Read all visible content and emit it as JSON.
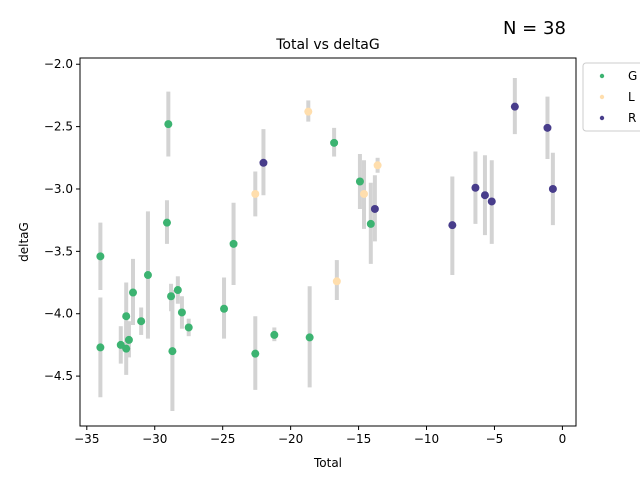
{
  "chart_data": {
    "type": "scatter",
    "title": "Total vs deltaG",
    "xlabel": "Total",
    "ylabel": "deltaG",
    "annotation": "N = 38",
    "xlim": [
      -35.5,
      1.0
    ],
    "ylim": [
      -4.9,
      -1.95
    ],
    "xticks": [
      -35,
      -30,
      -25,
      -20,
      -15,
      -10,
      -5,
      0
    ],
    "yticks": [
      -4.5,
      -4.0,
      -3.5,
      -3.0,
      -2.5,
      -2.0
    ],
    "grid": false,
    "legend_position": "outside-right",
    "error_bar_color": "#d3d3d3",
    "series": [
      {
        "name": "G",
        "color": "#3cb371",
        "points": [
          {
            "x": -34.0,
            "y": -3.54,
            "lo": -3.81,
            "hi": -3.27
          },
          {
            "x": -34.0,
            "y": -4.27,
            "lo": -4.67,
            "hi": -3.87
          },
          {
            "x": -32.5,
            "y": -4.25,
            "lo": -4.4,
            "hi": -4.1
          },
          {
            "x": -32.1,
            "y": -4.28,
            "lo": -4.49,
            "hi": -4.06
          },
          {
            "x": -32.1,
            "y": -4.02,
            "lo": -4.29,
            "hi": -3.75
          },
          {
            "x": -31.9,
            "y": -4.21,
            "lo": -4.35,
            "hi": -4.06
          },
          {
            "x": -31.6,
            "y": -3.83,
            "lo": -4.09,
            "hi": -3.56
          },
          {
            "x": -31.0,
            "y": -4.06,
            "lo": -4.17,
            "hi": -3.95
          },
          {
            "x": -30.5,
            "y": -3.69,
            "lo": -4.2,
            "hi": -3.18
          },
          {
            "x": -29.1,
            "y": -3.27,
            "lo": -3.44,
            "hi": -3.09
          },
          {
            "x": -29.0,
            "y": -2.48,
            "lo": -2.74,
            "hi": -2.22
          },
          {
            "x": -28.8,
            "y": -3.86,
            "lo": -3.98,
            "hi": -3.76
          },
          {
            "x": -28.7,
            "y": -4.3,
            "lo": -4.78,
            "hi": -3.81
          },
          {
            "x": -28.3,
            "y": -3.81,
            "lo": -3.92,
            "hi": -3.7
          },
          {
            "x": -28.0,
            "y": -3.99,
            "lo": -4.12,
            "hi": -3.86
          },
          {
            "x": -27.5,
            "y": -4.11,
            "lo": -4.18,
            "hi": -4.04
          },
          {
            "x": -24.9,
            "y": -3.96,
            "lo": -4.2,
            "hi": -3.71
          },
          {
            "x": -24.2,
            "y": -3.44,
            "lo": -3.77,
            "hi": -3.11
          },
          {
            "x": -22.6,
            "y": -4.32,
            "lo": -4.61,
            "hi": -4.02
          },
          {
            "x": -21.2,
            "y": -4.17,
            "lo": -4.22,
            "hi": -4.11
          },
          {
            "x": -18.6,
            "y": -4.19,
            "lo": -4.59,
            "hi": -3.78
          },
          {
            "x": -16.8,
            "y": -2.63,
            "lo": -2.74,
            "hi": -2.51
          },
          {
            "x": -14.9,
            "y": -2.94,
            "lo": -3.16,
            "hi": -2.72
          },
          {
            "x": -14.1,
            "y": -3.28,
            "lo": -3.6,
            "hi": -2.95
          }
        ]
      },
      {
        "name": "L",
        "color": "#ffdead",
        "points": [
          {
            "x": -22.6,
            "y": -3.04,
            "lo": -3.22,
            "hi": -2.86
          },
          {
            "x": -18.7,
            "y": -2.38,
            "lo": -2.46,
            "hi": -2.29
          },
          {
            "x": -16.6,
            "y": -3.74,
            "lo": -3.89,
            "hi": -3.57
          },
          {
            "x": -14.6,
            "y": -3.04,
            "lo": -3.32,
            "hi": -2.77
          },
          {
            "x": -13.6,
            "y": -2.81,
            "lo": -2.87,
            "hi": -2.75
          }
        ]
      },
      {
        "name": "R",
        "color": "#483d8b",
        "points": [
          {
            "x": -22.0,
            "y": -2.79,
            "lo": -3.05,
            "hi": -2.52
          },
          {
            "x": -13.8,
            "y": -3.16,
            "lo": -3.42,
            "hi": -2.89
          },
          {
            "x": -8.1,
            "y": -3.29,
            "lo": -3.69,
            "hi": -2.9
          },
          {
            "x": -6.4,
            "y": -2.99,
            "lo": -3.28,
            "hi": -2.7
          },
          {
            "x": -5.7,
            "y": -3.05,
            "lo": -3.37,
            "hi": -2.73
          },
          {
            "x": -5.2,
            "y": -3.1,
            "lo": -3.44,
            "hi": -2.77
          },
          {
            "x": -3.5,
            "y": -2.34,
            "lo": -2.56,
            "hi": -2.11
          },
          {
            "x": -1.1,
            "y": -2.51,
            "lo": -2.76,
            "hi": -2.26
          },
          {
            "x": -0.7,
            "y": -3.0,
            "lo": -3.29,
            "hi": -2.71
          }
        ]
      }
    ]
  }
}
